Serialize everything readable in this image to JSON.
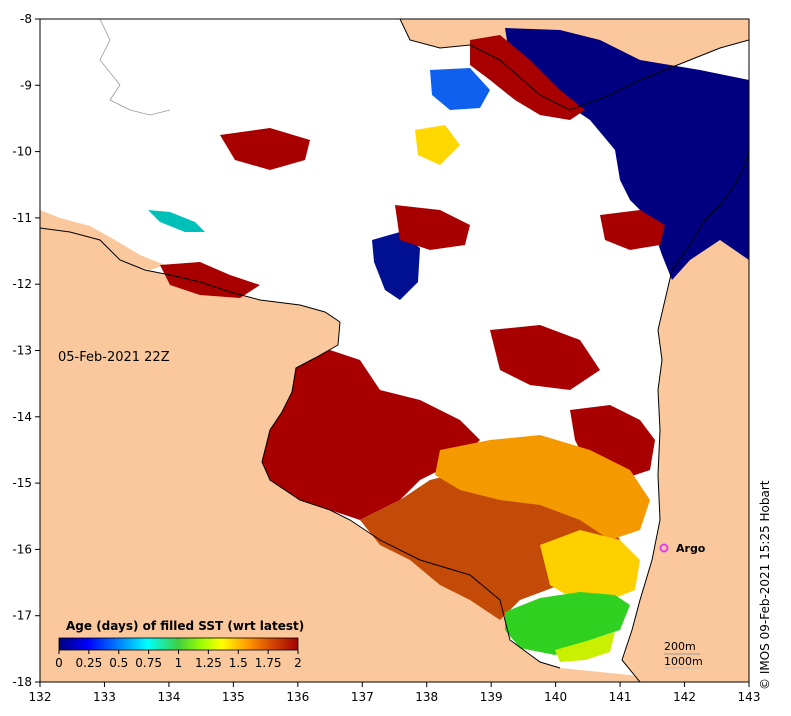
{
  "map": {
    "timestamp": "05-Feb-2021 22Z",
    "credit": "IMOS 09-Feb-2021 15:25 Hobart",
    "copyright_symbol": "©",
    "argo_label": "Argo",
    "argo_location": {
      "lon": 141.7,
      "lat": -16.0
    },
    "x_ticks": [
      "132",
      "133",
      "134",
      "135",
      "136",
      "137",
      "138",
      "139",
      "140",
      "141",
      "142",
      "143"
    ],
    "y_ticks": [
      "-8",
      "-9",
      "-10",
      "-11",
      "-12",
      "-13",
      "-14",
      "-15",
      "-16",
      "-17",
      "-18"
    ],
    "colors": {
      "land": "#fac89c",
      "no_data": "#ffffff",
      "argo_marker": "#e040f0"
    }
  },
  "legend": {
    "title": "Age (days) of filled SST (wrt latest)",
    "tick_labels": [
      "0",
      "0.25",
      "0.5",
      "0.75",
      "1",
      "1.25",
      "1.5",
      "1.75",
      "2"
    ],
    "range": [
      0,
      2
    ],
    "colormap": [
      "#00007f",
      "#0000ff",
      "#0080ff",
      "#00ffff",
      "#20c040",
      "#80ff00",
      "#ffff00",
      "#ffc000",
      "#ff8000",
      "#c04000",
      "#a00000"
    ]
  },
  "scale_legend": {
    "line1": "200m",
    "line2": "1000m"
  }
}
